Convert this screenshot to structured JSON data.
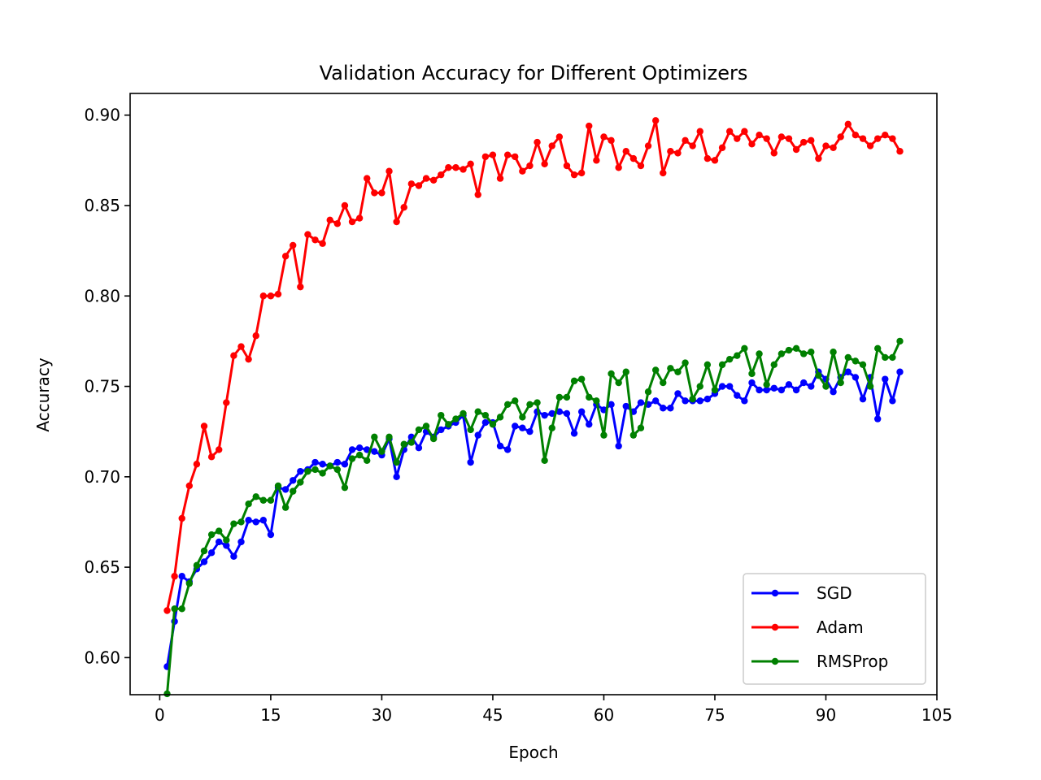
{
  "chart_data": {
    "type": "line",
    "title": "Validation Accuracy for Different Optimizers",
    "xlabel": "Epoch",
    "ylabel": "Accuracy",
    "xlim": [
      -4,
      105
    ],
    "ylim": [
      0.5795,
      0.912
    ],
    "xticks": [
      0,
      15,
      30,
      45,
      60,
      75,
      90,
      105
    ],
    "xtick_labels": [
      "0",
      "15",
      "30",
      "45",
      "60",
      "75",
      "90",
      "105"
    ],
    "yticks": [
      0.6,
      0.65,
      0.7,
      0.75,
      0.8,
      0.85,
      0.9
    ],
    "ytick_labels": [
      "0.60",
      "0.65",
      "0.70",
      "0.75",
      "0.80",
      "0.85",
      "0.90"
    ],
    "grid": false,
    "legend_position": "lower-right",
    "marker": "circle",
    "series": [
      {
        "name": "SGD",
        "color": "#0000ff",
        "x": [
          1,
          2,
          3,
          4,
          5,
          6,
          7,
          8,
          9,
          10,
          11,
          12,
          13,
          14,
          15,
          16,
          17,
          18,
          19,
          20,
          21,
          22,
          23,
          24,
          25,
          26,
          27,
          28,
          29,
          30,
          31,
          32,
          33,
          34,
          35,
          36,
          37,
          38,
          39,
          40,
          41,
          42,
          43,
          44,
          45,
          46,
          47,
          48,
          49,
          50,
          51,
          52,
          53,
          54,
          55,
          56,
          57,
          58,
          59,
          60,
          61,
          62,
          63,
          64,
          65,
          66,
          67,
          68,
          69,
          70,
          71,
          72,
          73,
          74,
          75,
          76,
          77,
          78,
          79,
          80,
          81,
          82,
          83,
          84,
          85,
          86,
          87,
          88,
          89,
          90,
          91,
          92,
          93,
          94,
          95,
          96,
          97,
          98,
          99,
          100
        ],
        "values": [
          0.595,
          0.62,
          0.645,
          0.642,
          0.649,
          0.653,
          0.658,
          0.664,
          0.662,
          0.656,
          0.664,
          0.676,
          0.675,
          0.676,
          0.668,
          0.694,
          0.693,
          0.698,
          0.703,
          0.704,
          0.708,
          0.707,
          0.706,
          0.708,
          0.707,
          0.715,
          0.716,
          0.715,
          0.714,
          0.712,
          0.721,
          0.7,
          0.715,
          0.722,
          0.716,
          0.725,
          0.722,
          0.726,
          0.728,
          0.73,
          0.734,
          0.708,
          0.723,
          0.73,
          0.73,
          0.717,
          0.715,
          0.728,
          0.727,
          0.725,
          0.736,
          0.734,
          0.735,
          0.736,
          0.735,
          0.724,
          0.736,
          0.729,
          0.74,
          0.737,
          0.74,
          0.717,
          0.739,
          0.736,
          0.741,
          0.74,
          0.742,
          0.738,
          0.738,
          0.746,
          0.742,
          0.742,
          0.742,
          0.743,
          0.746,
          0.75,
          0.75,
          0.745,
          0.742,
          0.752,
          0.748,
          0.748,
          0.749,
          0.748,
          0.751,
          0.748,
          0.752,
          0.75,
          0.758,
          0.754,
          0.747,
          0.755,
          0.758,
          0.755,
          0.743,
          0.755,
          0.732,
          0.754,
          0.742,
          0.758
        ]
      },
      {
        "name": "Adam",
        "color": "#ff0000",
        "x": [
          1,
          2,
          3,
          4,
          5,
          6,
          7,
          8,
          9,
          10,
          11,
          12,
          13,
          14,
          15,
          16,
          17,
          18,
          19,
          20,
          21,
          22,
          23,
          24,
          25,
          26,
          27,
          28,
          29,
          30,
          31,
          32,
          33,
          34,
          35,
          36,
          37,
          38,
          39,
          40,
          41,
          42,
          43,
          44,
          45,
          46,
          47,
          48,
          49,
          50,
          51,
          52,
          53,
          54,
          55,
          56,
          57,
          58,
          59,
          60,
          61,
          62,
          63,
          64,
          65,
          66,
          67,
          68,
          69,
          70,
          71,
          72,
          73,
          74,
          75,
          76,
          77,
          78,
          79,
          80,
          81,
          82,
          83,
          84,
          85,
          86,
          87,
          88,
          89,
          90,
          91,
          92,
          93,
          94,
          95,
          96,
          97,
          98,
          99,
          100
        ],
        "values": [
          0.626,
          0.645,
          0.677,
          0.695,
          0.707,
          0.728,
          0.711,
          0.715,
          0.741,
          0.767,
          0.772,
          0.765,
          0.778,
          0.8,
          0.8,
          0.801,
          0.822,
          0.828,
          0.805,
          0.834,
          0.831,
          0.829,
          0.842,
          0.84,
          0.85,
          0.841,
          0.843,
          0.865,
          0.857,
          0.857,
          0.869,
          0.841,
          0.849,
          0.862,
          0.861,
          0.865,
          0.864,
          0.867,
          0.871,
          0.871,
          0.87,
          0.873,
          0.856,
          0.877,
          0.878,
          0.865,
          0.878,
          0.877,
          0.869,
          0.872,
          0.885,
          0.873,
          0.883,
          0.888,
          0.872,
          0.867,
          0.868,
          0.894,
          0.875,
          0.888,
          0.886,
          0.871,
          0.88,
          0.876,
          0.872,
          0.883,
          0.897,
          0.868,
          0.88,
          0.879,
          0.886,
          0.883,
          0.891,
          0.876,
          0.875,
          0.882,
          0.891,
          0.887,
          0.891,
          0.884,
          0.889,
          0.887,
          0.879,
          0.888,
          0.887,
          0.881,
          0.885,
          0.886,
          0.876,
          0.883,
          0.882,
          0.888,
          0.895,
          0.889,
          0.887,
          0.883,
          0.887,
          0.889,
          0.887,
          0.88
        ]
      },
      {
        "name": "RMSProp",
        "color": "#008000",
        "x": [
          1,
          2,
          3,
          4,
          5,
          6,
          7,
          8,
          9,
          10,
          11,
          12,
          13,
          14,
          15,
          16,
          17,
          18,
          19,
          20,
          21,
          22,
          23,
          24,
          25,
          26,
          27,
          28,
          29,
          30,
          31,
          32,
          33,
          34,
          35,
          36,
          37,
          38,
          39,
          40,
          41,
          42,
          43,
          44,
          45,
          46,
          47,
          48,
          49,
          50,
          51,
          52,
          53,
          54,
          55,
          56,
          57,
          58,
          59,
          60,
          61,
          62,
          63,
          64,
          65,
          66,
          67,
          68,
          69,
          70,
          71,
          72,
          73,
          74,
          75,
          76,
          77,
          78,
          79,
          80,
          81,
          82,
          83,
          84,
          85,
          86,
          87,
          88,
          89,
          90,
          91,
          92,
          93,
          94,
          95,
          96,
          97,
          98,
          99,
          100
        ],
        "values": [
          0.58,
          0.627,
          0.627,
          0.641,
          0.651,
          0.659,
          0.668,
          0.67,
          0.665,
          0.674,
          0.675,
          0.685,
          0.689,
          0.687,
          0.687,
          0.695,
          0.683,
          0.692,
          0.697,
          0.703,
          0.704,
          0.702,
          0.706,
          0.704,
          0.694,
          0.71,
          0.712,
          0.709,
          0.722,
          0.714,
          0.722,
          0.708,
          0.718,
          0.719,
          0.726,
          0.728,
          0.721,
          0.734,
          0.729,
          0.732,
          0.735,
          0.726,
          0.736,
          0.734,
          0.729,
          0.733,
          0.74,
          0.742,
          0.733,
          0.74,
          0.741,
          0.709,
          0.727,
          0.744,
          0.744,
          0.753,
          0.754,
          0.744,
          0.742,
          0.723,
          0.757,
          0.752,
          0.758,
          0.723,
          0.727,
          0.747,
          0.759,
          0.752,
          0.76,
          0.758,
          0.763,
          0.743,
          0.75,
          0.762,
          0.748,
          0.762,
          0.765,
          0.767,
          0.771,
          0.757,
          0.768,
          0.751,
          0.762,
          0.768,
          0.77,
          0.771,
          0.768,
          0.769,
          0.756,
          0.75,
          0.769,
          0.752,
          0.766,
          0.764,
          0.762,
          0.75,
          0.771,
          0.766,
          0.766,
          0.775
        ]
      }
    ]
  }
}
